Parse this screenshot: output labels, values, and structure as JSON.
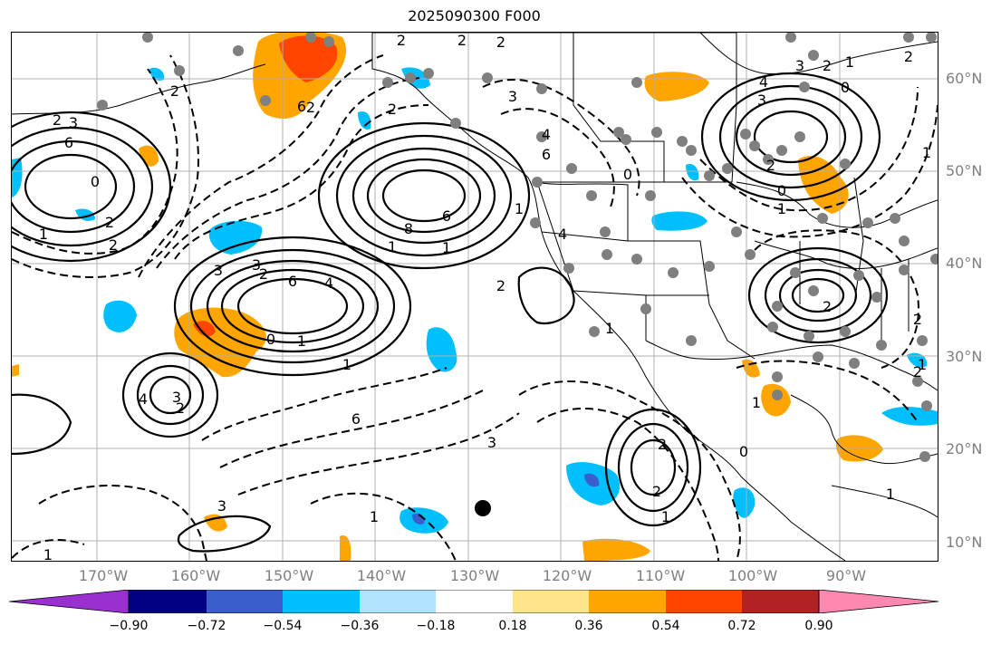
{
  "title": "2025090300 F000",
  "latitude_labels": [
    "60°N",
    "50°N",
    "40°N",
    "30°N",
    "20°N",
    "10°N"
  ],
  "longitude_labels": [
    "170°W",
    "160°W",
    "150°W",
    "140°W",
    "130°W",
    "120°W",
    "110°W",
    "100°W",
    "90°W"
  ],
  "colorbar": {
    "ticks": [
      "−0.90",
      "−0.72",
      "−0.54",
      "−0.36",
      "−0.18",
      "0.18",
      "0.36",
      "0.54",
      "0.72",
      "0.90"
    ],
    "colors": [
      "#9b30d0",
      "#000080",
      "#3a5fcd",
      "#00bfff",
      "#afe3ff",
      "#ffffff",
      "#ffe58a",
      "#ffa500",
      "#ff4500",
      "#b22222",
      "#ff88b0"
    ]
  },
  "contour_labels": [
    "2",
    "2",
    "2",
    "3",
    "4",
    "0",
    "1",
    "4",
    "6",
    "6",
    "8",
    "1",
    "1",
    "2",
    "2",
    "6",
    "3",
    "2",
    "6",
    "4",
    "1",
    "0",
    "4",
    "3",
    "2",
    "2",
    "6",
    "2",
    "1",
    "2",
    "3",
    "0",
    "2",
    "3",
    "4",
    "3",
    "2",
    "1",
    "0",
    "2",
    "1",
    "2",
    "2",
    "2",
    "3",
    "0",
    "1",
    "6",
    "3",
    "2",
    "2",
    "1",
    "0",
    "1",
    "2",
    "1",
    "3",
    "1",
    "1",
    "1",
    "1",
    "2",
    "1"
  ]
}
